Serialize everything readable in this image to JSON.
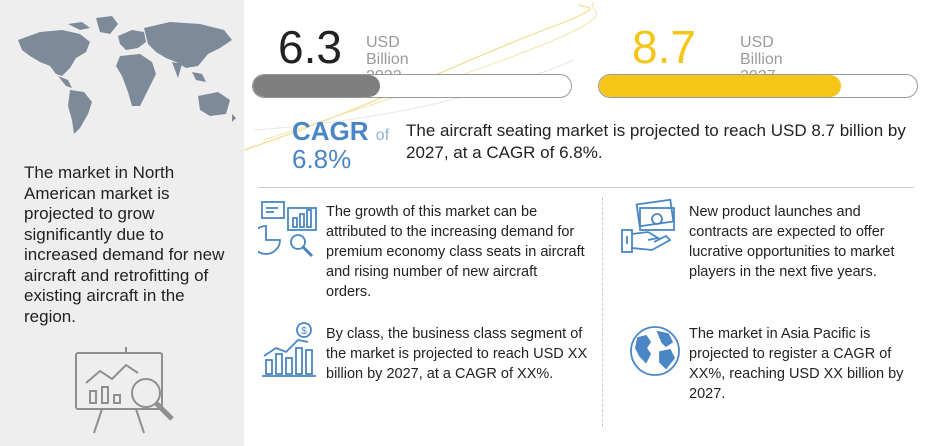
{
  "left_panel": {
    "text": "The market in North American market is projected to grow significantly due to increased demand for new aircraft and retrofitting of existing aircraft in the region."
  },
  "stats": [
    {
      "value": "6.3",
      "unit": "USD Billion",
      "year": "2022",
      "color": "#222222",
      "bar_color": "#7f7f7f",
      "fill_fraction": 0.4
    },
    {
      "value": "8.7",
      "unit": "USD Billion",
      "year": "2027",
      "color": "#f5c518",
      "bar_color": "#f5c518",
      "fill_fraction": 0.76
    }
  ],
  "cagr": {
    "label": "CAGR",
    "of": "of",
    "value": "6.8%"
  },
  "summary": "The aircraft seating market is projected to reach USD 8.7 billion by 2027, at a CAGR of 6.8%.",
  "insights": [
    {
      "icon": "growth-chart-icon",
      "text": "The growth of this market can be attributed to the increasing demand for premium economy class seats in aircraft and rising number of new aircraft orders."
    },
    {
      "icon": "cash-hand-icon",
      "text": "New product launches and contracts are expected to offer lucrative opportunities to market players in the next five years."
    },
    {
      "icon": "dollar-bar-chart-icon",
      "text": "By class, the business class segment of the market is projected to reach USD XX billion by 2027, at a CAGR of XX%."
    },
    {
      "icon": "globe-icon",
      "text": "The market in Asia Pacific is projected to register a CAGR of XX%, reaching USD XX billion by 2027."
    }
  ],
  "colors": {
    "accent_blue": "#4a86c5",
    "accent_yellow": "#f5c518",
    "panel_gray": "#eeeeee"
  }
}
